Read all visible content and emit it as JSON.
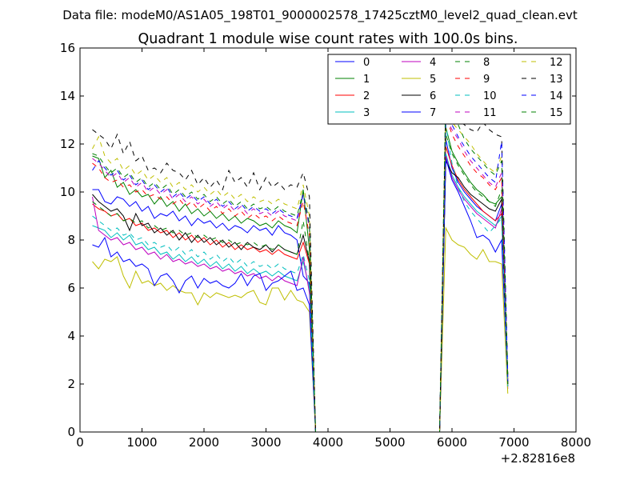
{
  "chart_data": {
    "type": "line",
    "suptitle": "Data file: modeM0/AS1A05_198T01_9000002578_17425cztM0_level2_quad_clean.evt",
    "title": "Quadrant 1 module wise count rates with 100.0s bins.",
    "xlabel": "",
    "ylabel": "",
    "x_offset_label": "+2.82816e8",
    "xlim": [
      0,
      8000
    ],
    "ylim": [
      0,
      16
    ],
    "xticks": [
      0,
      1000,
      2000,
      3000,
      4000,
      5000,
      6000,
      7000,
      8000
    ],
    "yticks": [
      0,
      2,
      4,
      6,
      8,
      10,
      12,
      14,
      16
    ],
    "grid": false,
    "legend_position": "top-right",
    "legend_columns": 4,
    "x": [
      200,
      300,
      400,
      500,
      600,
      700,
      800,
      900,
      1000,
      1100,
      1200,
      1300,
      1400,
      1500,
      1600,
      1700,
      1800,
      1900,
      2000,
      2100,
      2200,
      2300,
      2400,
      2500,
      2600,
      2700,
      2800,
      2900,
      3000,
      3100,
      3200,
      3300,
      3400,
      3500,
      3600,
      3700,
      3800,
      3900,
      4000,
      4100,
      4200,
      4300,
      4400,
      4500,
      4600,
      4700,
      4800,
      4900,
      5000,
      5100,
      5200,
      5300,
      5400,
      5500,
      5600,
      5700,
      5800,
      5900,
      6000,
      6100,
      6200,
      6300,
      6400,
      6500,
      6600,
      6700,
      6800,
      6900,
      7000
    ],
    "series": [
      {
        "name": "0",
        "color": "#0000ff",
        "dash": "solid",
        "block1": [
          10.1,
          10.1,
          9.6,
          9.5,
          9.8,
          9.7,
          9.4,
          9.6,
          9.2,
          9.4,
          8.9,
          9.1,
          9.0,
          9.2,
          8.8,
          9.0,
          8.6,
          8.9,
          8.7,
          8.8,
          8.5,
          8.7,
          8.4,
          8.6,
          8.5,
          8.3,
          8.6,
          8.4,
          8.5,
          8.2,
          8.6,
          8.3,
          8.2,
          8.0,
          6.5,
          6.2
        ],
        "block2": [
          12.2,
          11.0,
          10.4,
          10.0,
          9.7,
          9.4,
          9.2,
          9.0,
          8.8,
          9.5,
          2.0
        ]
      },
      {
        "name": "1",
        "color": "#008000",
        "dash": "solid",
        "block1": [
          11.5,
          11.4,
          10.6,
          10.9,
          10.2,
          10.4,
          9.9,
          10.1,
          9.8,
          9.9,
          9.5,
          9.8,
          9.4,
          9.6,
          9.2,
          9.5,
          9.1,
          9.3,
          9.0,
          9.2,
          8.9,
          9.1,
          8.8,
          9.0,
          8.7,
          8.9,
          8.8,
          8.6,
          8.7,
          8.5,
          8.8,
          8.6,
          8.5,
          8.3,
          10.1,
          7.6
        ],
        "block2": [
          12.7,
          11.7,
          11.2,
          10.8,
          10.4,
          10.1,
          9.9,
          9.6,
          9.5,
          9.8,
          2.1
        ]
      },
      {
        "name": "2",
        "color": "#ff0000",
        "dash": "solid",
        "block1": [
          9.5,
          9.3,
          9.2,
          9.0,
          9.1,
          8.8,
          8.9,
          8.6,
          8.7,
          8.4,
          8.5,
          8.3,
          8.4,
          8.1,
          8.3,
          8.0,
          8.2,
          7.9,
          8.1,
          7.8,
          8.0,
          7.7,
          7.9,
          7.6,
          7.8,
          7.6,
          7.7,
          7.5,
          7.6,
          7.4,
          7.6,
          7.4,
          7.3,
          7.2,
          7.9,
          7.0
        ],
        "block2": [
          11.9,
          11.1,
          10.5,
          10.1,
          9.8,
          9.5,
          9.2,
          9.0,
          8.8,
          9.1,
          1.9
        ]
      },
      {
        "name": "3",
        "color": "#00bfbf",
        "dash": "solid",
        "block1": [
          8.6,
          8.5,
          8.4,
          8.1,
          8.3,
          8.0,
          8.2,
          7.8,
          7.9,
          7.6,
          7.7,
          7.4,
          7.5,
          7.2,
          7.4,
          7.1,
          7.3,
          7.0,
          7.2,
          6.9,
          7.1,
          6.8,
          7.0,
          6.7,
          6.9,
          6.6,
          6.8,
          6.6,
          6.7,
          6.5,
          6.7,
          6.5,
          6.4,
          6.3,
          7.1,
          6.0
        ],
        "block2": [
          11.6,
          10.7,
          10.2,
          9.8,
          9.5,
          9.2,
          9.0,
          8.8,
          8.6,
          9.0,
          1.9
        ]
      },
      {
        "name": "4",
        "color": "#bf00bf",
        "dash": "solid",
        "block1": [
          9.8,
          8.4,
          8.2,
          8.0,
          8.1,
          7.8,
          7.9,
          7.6,
          7.7,
          7.4,
          7.5,
          7.2,
          7.4,
          7.1,
          7.2,
          7.0,
          7.1,
          6.9,
          7.0,
          6.8,
          6.9,
          6.7,
          6.8,
          6.6,
          6.7,
          6.5,
          6.6,
          6.4,
          6.5,
          6.3,
          6.5,
          6.3,
          6.2,
          6.1,
          7.3,
          5.8
        ],
        "block2": [
          11.5,
          10.6,
          10.1,
          9.7,
          9.4,
          9.1,
          8.9,
          8.7,
          8.5,
          9.3,
          1.8
        ]
      },
      {
        "name": "5",
        "color": "#bfbf00",
        "dash": "solid",
        "block1": [
          7.1,
          6.8,
          7.2,
          7.1,
          7.3,
          6.5,
          6.0,
          6.7,
          6.2,
          6.3,
          6.1,
          6.2,
          5.9,
          6.1,
          5.9,
          5.8,
          5.8,
          5.3,
          5.8,
          5.6,
          5.8,
          5.7,
          5.6,
          5.7,
          5.6,
          5.8,
          5.9,
          5.4,
          5.3,
          6.0,
          6.0,
          5.5,
          5.9,
          5.5,
          5.4,
          5.0
        ],
        "block2": [
          8.5,
          8.0,
          7.8,
          7.7,
          7.4,
          7.2,
          7.6,
          7.1,
          7.1,
          7.0,
          1.6
        ]
      },
      {
        "name": "6",
        "color": "#000000",
        "dash": "solid",
        "block1": [
          9.9,
          9.6,
          9.4,
          9.2,
          9.3,
          9.0,
          8.4,
          9.1,
          8.6,
          8.7,
          8.3,
          8.5,
          8.2,
          8.4,
          8.0,
          8.3,
          7.9,
          8.2,
          7.9,
          8.1,
          7.8,
          8.0,
          7.7,
          7.9,
          7.6,
          7.9,
          7.7,
          7.6,
          7.8,
          7.5,
          7.8,
          7.6,
          7.5,
          7.4,
          8.2,
          7.1
        ],
        "block2": [
          11.3,
          10.8,
          10.6,
          10.2,
          9.9,
          9.7,
          9.5,
          9.3,
          9.2,
          9.7,
          2.0
        ]
      },
      {
        "name": "7",
        "color": "#0000ff",
        "dash": "solid",
        "block1": [
          7.8,
          7.7,
          8.1,
          7.3,
          7.5,
          7.1,
          7.2,
          6.9,
          7.0,
          6.8,
          6.1,
          6.5,
          6.6,
          6.3,
          5.8,
          6.3,
          6.5,
          6.0,
          6.4,
          6.2,
          6.3,
          6.1,
          6.0,
          6.2,
          6.6,
          6.1,
          6.5,
          6.6,
          5.9,
          6.2,
          6.3,
          6.5,
          6.7,
          5.9,
          6.0,
          5.3
        ],
        "block2": [
          11.4,
          10.5,
          10.0,
          9.4,
          8.8,
          8.1,
          8.2,
          8.0,
          7.5,
          8.0,
          2.1
        ]
      },
      {
        "name": "8",
        "color": "#008000",
        "dash": "dashed",
        "block1": [
          9.6,
          9.4,
          9.2,
          9.0,
          9.1,
          8.8,
          8.9,
          8.7,
          8.8,
          8.5,
          8.6,
          8.4,
          8.5,
          8.3,
          8.4,
          8.2,
          8.3,
          8.1,
          8.2,
          8.0,
          8.1,
          7.9,
          8.0,
          7.8,
          7.9,
          7.8,
          7.9,
          7.7,
          7.8,
          7.6,
          7.8,
          7.6,
          7.5,
          7.4,
          8.8,
          7.1
        ],
        "block2": [
          12.4,
          11.6,
          11.1,
          10.7,
          10.3,
          10.0,
          9.8,
          9.6,
          9.4,
          10.1,
          2.0
        ]
      },
      {
        "name": "9",
        "color": "#ff0000",
        "dash": "dashed",
        "block1": [
          11.2,
          11.0,
          10.6,
          10.4,
          10.5,
          10.2,
          10.3,
          10.0,
          10.1,
          9.8,
          9.9,
          9.7,
          9.8,
          9.5,
          9.7,
          9.4,
          9.6,
          9.3,
          9.5,
          9.2,
          9.4,
          9.1,
          9.3,
          9.0,
          9.2,
          8.9,
          9.1,
          8.9,
          9.0,
          8.8,
          9.0,
          8.8,
          8.7,
          8.6,
          9.6,
          8.2
        ],
        "block2": [
          13.2,
          12.4,
          11.9,
          11.5,
          11.1,
          10.8,
          10.6,
          10.3,
          10.1,
          10.6,
          2.2
        ]
      },
      {
        "name": "10",
        "color": "#00bfbf",
        "dash": "dashed",
        "block1": [
          9.0,
          8.8,
          8.6,
          8.4,
          8.5,
          8.2,
          8.3,
          8.0,
          8.1,
          7.8,
          7.9,
          7.7,
          7.8,
          7.5,
          7.7,
          7.4,
          7.6,
          7.3,
          7.5,
          7.2,
          7.4,
          7.1,
          7.3,
          7.0,
          7.2,
          6.9,
          7.1,
          6.9,
          7.0,
          6.8,
          7.0,
          6.8,
          6.7,
          6.6,
          7.4,
          6.3
        ],
        "block2": [
          12.8,
          11.2,
          10.2,
          9.6,
          9.2,
          8.9,
          8.6,
          8.3,
          8.6,
          8.9,
          1.9
        ]
      },
      {
        "name": "11",
        "color": "#bf00bf",
        "dash": "dashed",
        "block1": [
          11.4,
          11.2,
          10.9,
          10.6,
          10.8,
          10.4,
          10.6,
          10.2,
          10.4,
          10.0,
          10.2,
          9.9,
          10.1,
          9.7,
          9.9,
          9.6,
          9.8,
          9.5,
          9.7,
          9.4,
          9.6,
          9.3,
          9.5,
          9.2,
          9.4,
          9.1,
          9.3,
          9.1,
          9.2,
          9.0,
          9.2,
          9.0,
          8.9,
          8.8,
          9.9,
          8.5
        ],
        "block2": [
          13.1,
          12.6,
          12.2,
          11.7,
          11.3,
          11.0,
          10.7,
          10.4,
          10.2,
          10.8,
          2.2
        ]
      },
      {
        "name": "12",
        "color": "#bfbf00",
        "dash": "dashed",
        "block1": [
          11.8,
          12.3,
          11.5,
          11.2,
          11.4,
          10.9,
          11.1,
          10.7,
          10.9,
          10.5,
          10.7,
          10.4,
          10.6,
          10.2,
          10.4,
          10.1,
          10.3,
          10.0,
          10.2,
          9.9,
          10.1,
          9.8,
          10.0,
          9.7,
          9.9,
          9.6,
          9.8,
          9.6,
          9.7,
          9.5,
          9.7,
          9.5,
          9.4,
          9.3,
          10.3,
          9.0
        ],
        "block2": [
          13.4,
          12.9,
          12.6,
          12.3,
          12.0,
          11.6,
          11.3,
          11.0,
          10.8,
          11.5,
          2.3
        ]
      },
      {
        "name": "13",
        "color": "#000000",
        "dash": "dashed",
        "block1": [
          12.6,
          12.4,
          12.2,
          11.8,
          12.4,
          11.6,
          12.1,
          11.3,
          11.5,
          10.9,
          11.0,
          10.8,
          11.2,
          10.9,
          10.8,
          10.5,
          10.9,
          10.3,
          10.6,
          10.2,
          10.5,
          10.1,
          10.9,
          10.4,
          10.6,
          10.2,
          10.8,
          10.1,
          10.6,
          10.2,
          10.4,
          10.1,
          10.3,
          10.2,
          10.8,
          9.8
        ],
        "block2": [
          13.8,
          13.4,
          13.0,
          12.8,
          12.6,
          12.5,
          12.9,
          12.6,
          12.4,
          12.3,
          2.4
        ]
      },
      {
        "name": "14",
        "color": "#0000ff",
        "dash": "dashed",
        "block1": [
          10.9,
          11.3,
          11.0,
          10.7,
          10.9,
          10.5,
          10.7,
          10.3,
          10.5,
          10.1,
          10.3,
          10.0,
          10.2,
          9.8,
          10.0,
          9.7,
          9.9,
          9.6,
          9.8,
          9.5,
          9.7,
          9.4,
          9.6,
          9.3,
          9.5,
          9.2,
          9.4,
          9.2,
          9.3,
          9.1,
          9.3,
          9.1,
          9.0,
          8.9,
          9.9,
          8.6
        ],
        "block2": [
          13.5,
          12.8,
          12.3,
          11.9,
          11.5,
          11.2,
          10.9,
          10.6,
          10.4,
          12.1,
          2.3
        ]
      },
      {
        "name": "15",
        "color": "#008000",
        "dash": "dashed",
        "block1": [
          11.6,
          11.5,
          11.1,
          10.8,
          11.0,
          10.6,
          10.8,
          10.4,
          10.6,
          10.2,
          10.4,
          10.1,
          10.3,
          9.9,
          10.1,
          9.8,
          10.0,
          9.7,
          9.9,
          9.6,
          9.8,
          9.5,
          9.7,
          9.4,
          9.6,
          9.3,
          9.5,
          9.3,
          9.4,
          9.2,
          9.4,
          9.2,
          9.1,
          9.0,
          10.0,
          8.7
        ],
        "block2": [
          14.3,
          13.5,
          12.8,
          12.2,
          11.8,
          11.5,
          11.2,
          10.9,
          10.7,
          11.3,
          2.3
        ]
      }
    ]
  }
}
